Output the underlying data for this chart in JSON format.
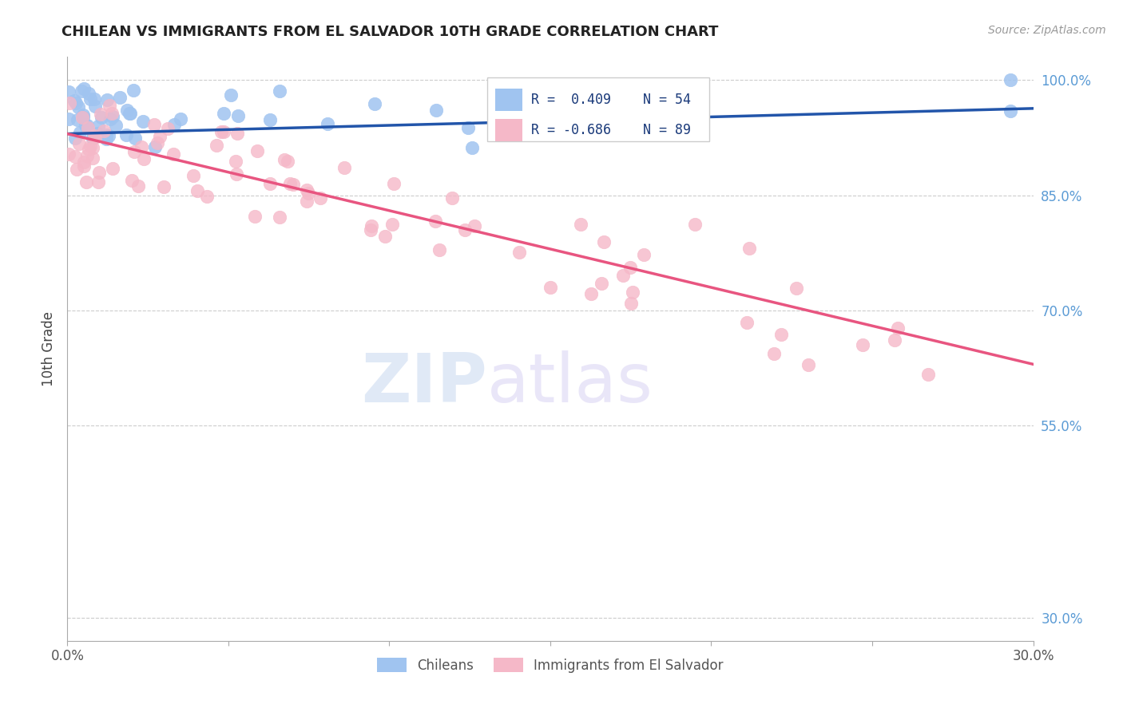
{
  "title": "CHILEAN VS IMMIGRANTS FROM EL SALVADOR 10TH GRADE CORRELATION CHART",
  "source": "Source: ZipAtlas.com",
  "ylabel": "10th Grade",
  "xlim": [
    0.0,
    0.3
  ],
  "ylim": [
    0.27,
    1.03
  ],
  "right_yticks": [
    1.0,
    0.85,
    0.7,
    0.55,
    0.3
  ],
  "right_yticklabels": [
    "100.0%",
    "85.0%",
    "70.0%",
    "55.0%",
    "30.0%"
  ],
  "grid_color": "#cccccc",
  "background_color": "#ffffff",
  "chilean_color": "#a0c4f0",
  "salvador_color": "#f5b8c8",
  "trend_blue": "#2255aa",
  "trend_pink": "#e85580",
  "legend_R_blue": "R =  0.409",
  "legend_N_blue": "N = 54",
  "legend_R_pink": "R = -0.686",
  "legend_N_pink": "N = 89",
  "legend_label_blue": "Chileans",
  "legend_label_pink": "Immigrants from El Salvador",
  "watermark_zip": "ZIP",
  "watermark_atlas": "atlas",
  "blue_trend_x0": 0.0,
  "blue_trend_y0": 0.93,
  "blue_trend_x1": 0.3,
  "blue_trend_y1": 0.963,
  "pink_trend_x0": 0.0,
  "pink_trend_y0": 0.93,
  "pink_trend_x1": 0.3,
  "pink_trend_y1": 0.63
}
